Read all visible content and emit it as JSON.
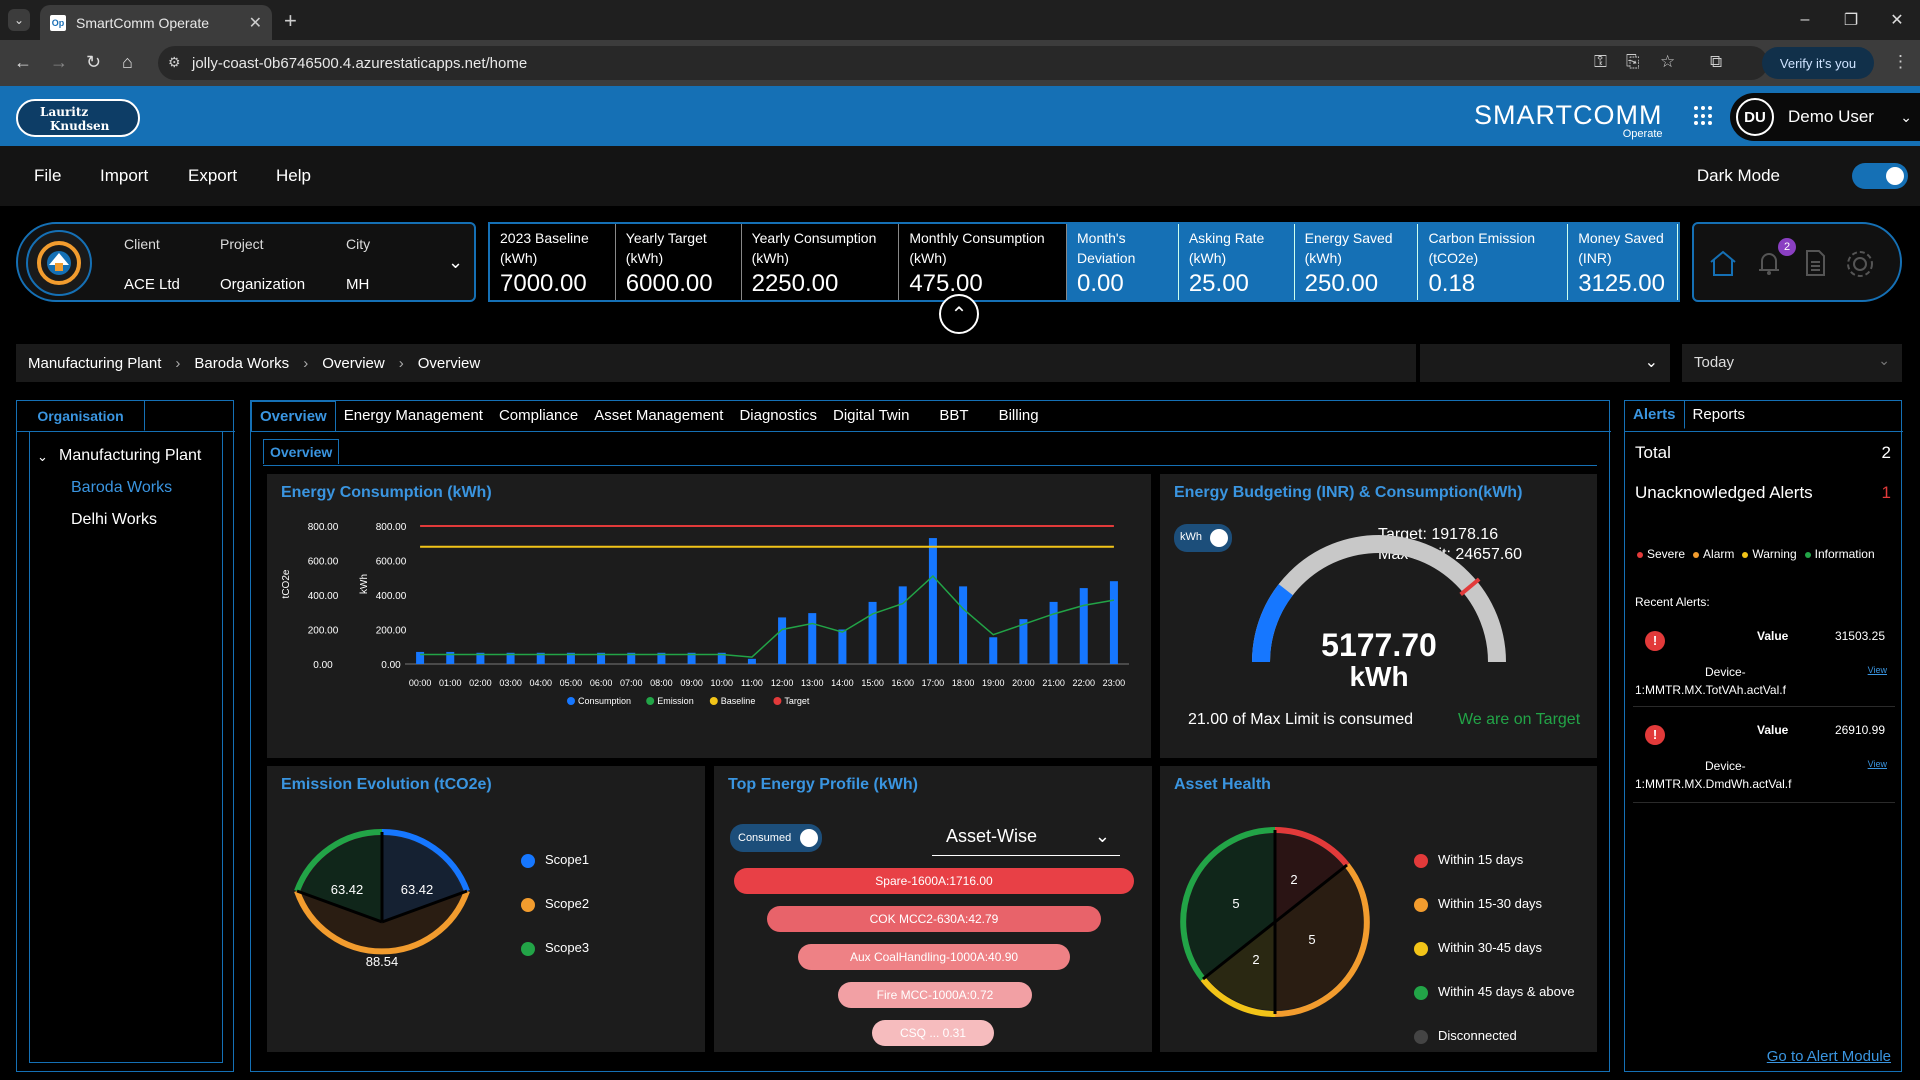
{
  "browser": {
    "tab_title": "SmartComm Operate",
    "tab_favicon": "Op",
    "url": "jolly-coast-0b6746500.4.azurestaticapps.net/home",
    "verify_label": "Verify it's you"
  },
  "header": {
    "logo_text_1": "Lauritz",
    "logo_text_2": "Knudsen",
    "brand": "SMARTCOMM",
    "brand_sub": "Operate",
    "user_initials": "DU",
    "user_name": "Demo User"
  },
  "menu": {
    "items": [
      "File",
      "Import",
      "Export",
      "Help"
    ],
    "dark_mode_label": "Dark Mode",
    "dark_mode_on": true
  },
  "context": {
    "client_label": "Client",
    "client_value": "ACE Ltd",
    "project_label": "Project",
    "project_value": "Organization",
    "city_label": "City",
    "city_value": "MH"
  },
  "kpis": [
    {
      "label_1": "2023 Baseline",
      "label_2": "(kWh)",
      "value": "7000.00"
    },
    {
      "label_1": "Yearly Target",
      "label_2": "(kWh)",
      "value": "6000.00"
    },
    {
      "label_1": "Yearly Consumption",
      "label_2": "(kWh)",
      "value": "2250.00"
    },
    {
      "label_1": "Monthly Consumption",
      "label_2": "(kWh)",
      "value": "475.00"
    },
    {
      "label_1": "Month's",
      "label_2": "Deviation",
      "value": "0.00"
    },
    {
      "label_1": "Asking Rate",
      "label_2": "(kWh)",
      "value": "25.00"
    },
    {
      "label_1": "Energy Saved",
      "label_2": "(kWh)",
      "value": "250.00"
    },
    {
      "label_1": "Carbon Emission",
      "label_2": "(tCO2e)",
      "value": "0.18"
    },
    {
      "label_1": "Money Saved",
      "label_2": "(INR)",
      "value": "3125.00"
    }
  ],
  "notifications_count": "2",
  "breadcrumb": [
    "Manufacturing Plant",
    "Baroda Works",
    "Overview",
    "Overview"
  ],
  "range_select": "Today",
  "left_panel": {
    "tab": "Organisation",
    "root": "Manufacturing Plant",
    "children": [
      "Baroda Works",
      "Delhi Works"
    ]
  },
  "main_tabs": [
    "Overview",
    "Energy Management",
    "Compliance",
    "Asset Management",
    "Diagnostics",
    "Digital Twin",
    "BBT",
    "Billing"
  ],
  "sub_tab": "Overview",
  "energy_chart": {
    "title": "Energy Consumption (kWh)",
    "y_left_label": "tCO2e",
    "y_right_label": "kWh",
    "legend": [
      "Consumption",
      "Emission",
      "Baseline",
      "Target"
    ]
  },
  "budget": {
    "title": "Energy Budgeting (INR) & Consumption(kWh)",
    "toggle_label": "kWh",
    "target": "Target: 19178.16",
    "max_limit": "Max Limit: 24657.60",
    "value": "5177.70",
    "unit": "kWh",
    "consumed_text": "21.00 of Max Limit is consumed",
    "status": "We are on Target",
    "fraction": 0.21
  },
  "emission": {
    "title": "Emission Evolution (tCO2e)",
    "legend": [
      "Scope1",
      "Scope2",
      "Scope3"
    ],
    "values": [
      "63.42",
      "88.54",
      "63.42"
    ]
  },
  "top_profile": {
    "title": "Top Energy Profile (kWh)",
    "toggle_label": "Consumed",
    "select": "Asset-Wise",
    "bars": [
      "Spare-1600A:1716.00",
      "COK MCC2-630A:42.79",
      "Aux CoalHandling-1000A:40.90",
      "Fire MCC-1000A:0.72",
      "CSQ ... 0.31"
    ]
  },
  "asset_health": {
    "title": "Asset Health",
    "legend": [
      "Within 15 days",
      "Within 15-30 days",
      "Within 30-45 days",
      "Within 45 days & above",
      "Disconnected"
    ],
    "values": [
      "2",
      "5",
      "2",
      "5"
    ]
  },
  "alerts": {
    "tabs": [
      "Alerts",
      "Reports"
    ],
    "total_label": "Total",
    "total_value": "2",
    "unack_label": "Unacknowledged Alerts",
    "unack_value": "1",
    "legend": [
      "Severe",
      "Alarm",
      "Warning",
      "Information"
    ],
    "recent_label": "Recent Alerts:",
    "items": [
      {
        "value_label": "Value",
        "value": "31503.25",
        "device": "Device-",
        "tag": "1:MMTR.MX.TotVAh.actVal.f",
        "view": "View"
      },
      {
        "value_label": "Value",
        "value": "26910.99",
        "device": "Device-",
        "tag": "1:MMTR.MX.DmdWh.actVal.f",
        "view": "View"
      }
    ],
    "goto": "Go to Alert Module"
  },
  "chart_data": {
    "type": "bar",
    "title": "Energy Consumption (kWh)",
    "xlabel": "",
    "ylabel": "kWh",
    "categories": [
      "00:00",
      "01:00",
      "02:00",
      "03:00",
      "04:00",
      "05:00",
      "06:00",
      "07:00",
      "08:00",
      "09:00",
      "10:00",
      "11:00",
      "12:00",
      "13:00",
      "14:00",
      "15:00",
      "16:00",
      "17:00",
      "18:00",
      "19:00",
      "20:00",
      "21:00",
      "22:00",
      "23:00"
    ],
    "ylim": [
      0,
      800
    ],
    "yticks": [
      "800.00",
      "600.00",
      "400.00",
      "200.00",
      "0.00"
    ],
    "series": [
      {
        "name": "Consumption",
        "type": "bar",
        "values": [
          70,
          70,
          65,
          65,
          65,
          65,
          65,
          65,
          65,
          65,
          65,
          30,
          270,
          295,
          200,
          360,
          450,
          730,
          450,
          155,
          260,
          360,
          440,
          480
        ]
      },
      {
        "name": "Emission",
        "type": "line",
        "values": [
          55,
          55,
          55,
          55,
          55,
          55,
          55,
          55,
          55,
          55,
          55,
          40,
          200,
          235,
          185,
          290,
          350,
          510,
          320,
          170,
          230,
          290,
          340,
          370
        ]
      },
      {
        "name": "Baseline",
        "type": "line",
        "values": [
          680,
          680,
          680,
          680,
          680,
          680,
          680,
          680,
          680,
          680,
          680,
          680,
          680,
          680,
          680,
          680,
          680,
          680,
          680,
          680,
          680,
          680,
          680,
          680
        ]
      },
      {
        "name": "Target",
        "type": "line",
        "values": [
          800,
          800,
          800,
          800,
          800,
          800,
          800,
          800,
          800,
          800,
          800,
          800,
          800,
          800,
          800,
          800,
          800,
          800,
          800,
          800,
          800,
          800,
          800,
          800
        ]
      }
    ],
    "colors": {
      "Consumption": "#1677ff",
      "Emission": "#22a447",
      "Baseline": "#f2c418",
      "Target": "#e23a3a"
    }
  }
}
